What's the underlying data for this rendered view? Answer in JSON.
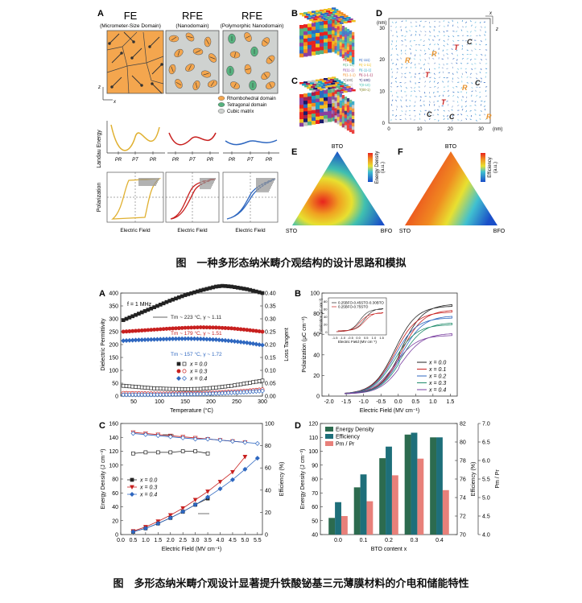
{
  "fig1": {
    "caption": "图　一种多形态纳米畴介观结构的设计思路和模拟",
    "A": {
      "letter": "A",
      "titles": [
        "FE",
        "RFE",
        "RFE"
      ],
      "subtitles": [
        "(Micrometer-Size Domain)",
        "(Nanodomain)",
        "(Polymorphic Nanodomain)"
      ],
      "legend": [
        "Rhombohedral domain",
        "Tetragonal domain",
        "Cubic matrix"
      ],
      "energy_ylabel": "Landau Energy",
      "energy_ticks": [
        [
          "PR",
          "PT",
          "PR"
        ],
        [
          "PR",
          "PT",
          "PR"
        ],
        [
          "PR",
          "PT",
          "PR"
        ]
      ],
      "pol_ylabel": "Polarization",
      "pol_xlabels": [
        "Electric Field",
        "Electric Field",
        "Electric Field"
      ],
      "axis_z": "z",
      "axis_x": "x"
    },
    "B": {
      "letter": "B"
    },
    "C": {
      "letter": "C"
    },
    "B_legend": [
      "R(111)",
      "R(-111)",
      "R(1-11)",
      "R(-1-11)",
      "R(11-1)",
      "R(-11-1)",
      "R(1-1-1)",
      "R(-1-1-1)",
      "T(100)",
      "T(-100)",
      "T(010)",
      "T(0-10)",
      "T(001)",
      "T(00-1)"
    ],
    "D": {
      "letter": "D",
      "ylabel": "(nm)",
      "xunit": "(nm)",
      "xticks": [
        "0",
        "10",
        "20",
        "30"
      ],
      "yticks": [
        "0",
        "10",
        "20",
        "30"
      ],
      "axis_x": "x",
      "axis_z": "z",
      "labels": [
        {
          "t": "C",
          "c": "#222"
        },
        {
          "t": "R",
          "c": "#e8912a"
        },
        {
          "t": "R",
          "c": "#e8912a"
        },
        {
          "t": "T",
          "c": "#c8201f"
        },
        {
          "t": "T",
          "c": "#c8201f"
        },
        {
          "t": "R",
          "c": "#e8912a"
        },
        {
          "t": "C",
          "c": "#222"
        },
        {
          "t": "T",
          "c": "#c8201f"
        },
        {
          "t": "C",
          "c": "#222"
        },
        {
          "t": "C",
          "c": "#222"
        },
        {
          "t": "R",
          "c": "#e8912a"
        }
      ]
    },
    "E": {
      "letter": "E",
      "top": "BTO",
      "left": "STO",
      "right": "BFO",
      "cbar": "Energy Density",
      "cbar_unit": "(a.u.)"
    },
    "F": {
      "letter": "F",
      "top": "BTO",
      "left": "STO",
      "right": "BFO",
      "cbar": "Efficiency",
      "cbar_unit": "(a.u.)"
    }
  },
  "fig2": {
    "caption": "图　多形态纳米畴介观设计显著提升铁酸铋基三元薄膜材料的介电和储能特性",
    "A": {
      "letter": "A",
      "freq": "f = 1 MHz",
      "ylabel_left": "Dielectric Permittivity",
      "ylabel_right": "Loss Tangent",
      "xlabel": "Temperature (°C)",
      "xticks": [
        "50",
        "100",
        "150",
        "200",
        "250",
        "300"
      ],
      "yticks_left": [
        "0",
        "50",
        "100",
        "150",
        "200",
        "250",
        "300",
        "350",
        "400"
      ],
      "yticks_right": [
        "0.00",
        "0.05",
        "0.10",
        "0.15",
        "0.20",
        "0.25",
        "0.30",
        "0.35",
        "0.40"
      ],
      "annotations": [
        "Tm ~ 223 °C, γ ~ 1.11",
        "Tm ~ 179 °C, γ ~ 1.51",
        "Tm ~ 157 °C, γ ~ 1.72"
      ],
      "legend": [
        "x = 0.0",
        "x = 0.3",
        "x = 0.4"
      ]
    },
    "B": {
      "letter": "B",
      "ylabel": "Polarization (μC cm⁻²)",
      "xlabel": "Electric Field (MV cm⁻¹)",
      "xticks": [
        "-2.0",
        "-1.5",
        "-1.0",
        "-0.5",
        "0.0",
        "0.5",
        "1.0",
        "1.5"
      ],
      "yticks": [
        "0",
        "20",
        "40",
        "60",
        "80",
        "100"
      ],
      "legend": [
        "x = 0.0",
        "x = 0.1",
        "x = 0.2",
        "x = 0.3",
        "x = 0.4"
      ],
      "inset_legend": [
        "0.25BFO-0.45STO-0.30BTO",
        "0.25BFO-0.75STO"
      ],
      "inset_ylabel": "Polarization (μC cm⁻²)",
      "inset_xlabel": "Electric Field (MV cm⁻¹)",
      "inset_xticks": [
        "-1.5",
        "-1.0",
        "-0.5",
        "0.0",
        "0.5",
        "1.0",
        "1.5"
      ],
      "inset_yticks": [
        "0",
        "20",
        "40",
        "60",
        "80"
      ]
    },
    "C": {
      "letter": "C",
      "ylabel_left": "Energy Density (J cm⁻³)",
      "ylabel_right": "Efficiency (%)",
      "xlabel": "Electric Field (MV cm⁻¹)",
      "xticks": [
        "0.0",
        "0.5",
        "1.0",
        "1.5",
        "2.0",
        "2.5",
        "3.0",
        "3.5",
        "4.0",
        "4.5",
        "5.0",
        "5.5"
      ],
      "yticks_left": [
        "0",
        "20",
        "40",
        "60",
        "80",
        "100",
        "120",
        "140",
        "160"
      ],
      "yticks_right": [
        "0",
        "20",
        "40",
        "60",
        "80",
        "100"
      ],
      "legend": [
        "x = 0.0",
        "x = 0.3",
        "x = 0.4"
      ]
    },
    "D": {
      "letter": "D",
      "ylabel_left": "Energy Density (J cm⁻³)",
      "ylabel_mid": "Efficiency (%)",
      "ylabel_right": "Pm / Pr",
      "xlabel": "BTO content x",
      "xticks": [
        "0.0",
        "0.1",
        "0.2",
        "0.3",
        "0.4"
      ],
      "yticks_left": [
        "40",
        "50",
        "60",
        "70",
        "80",
        "90",
        "100",
        "110",
        "120"
      ],
      "yticks_mid": [
        "70",
        "72",
        "74",
        "76",
        "78",
        "80",
        "82"
      ],
      "yticks_right": [
        "4.0",
        "4.5",
        "5.0",
        "5.5",
        "6.0",
        "6.5",
        "7.0"
      ],
      "legend": [
        "Energy Density",
        "Efficiency",
        "Pm / Pr"
      ]
    }
  },
  "chart_data": [
    {
      "type": "scatter",
      "xlabel": "Temperature (°C)",
      "ylabel": "Dielectric Permittivity",
      "xlim": [
        25,
        300
      ],
      "ylim": [
        0,
        400
      ],
      "series": [
        {
          "name": "x = 0.0",
          "color": "#222222",
          "permittivity": {
            "x": [
              30,
              60,
              90,
              120,
              150,
              180,
              210,
              223,
              240,
              270,
              300
            ],
            "y": [
              295,
              320,
              345,
              370,
              392,
              410,
              425,
              428,
              425,
              415,
              400
            ]
          },
          "loss": {
            "x": [
              30,
              60,
              90,
              120,
              150,
              180,
              210,
              240,
              270,
              300
            ],
            "y": [
              0.04,
              0.035,
              0.03,
              0.028,
              0.027,
              0.028,
              0.033,
              0.04,
              0.05,
              0.06
            ]
          }
        },
        {
          "name": "x = 0.3",
          "color": "#c8201f",
          "permittivity": {
            "x": [
              30,
              60,
              90,
              120,
              150,
              179,
              210,
              240,
              270,
              300
            ],
            "y": [
              250,
              254,
              258,
              262,
              265,
              267,
              266,
              263,
              257,
              250
            ]
          },
          "loss": {
            "x": [
              30,
              60,
              90,
              120,
              150,
              180,
              210,
              240,
              270,
              300
            ],
            "y": [
              0.012,
              0.011,
              0.01,
              0.01,
              0.011,
              0.012,
              0.014,
              0.017,
              0.021,
              0.026
            ]
          }
        },
        {
          "name": "x = 0.4",
          "color": "#2e67c0",
          "permittivity": {
            "x": [
              30,
              60,
              90,
              120,
              157,
              180,
              210,
              240,
              270,
              300
            ],
            "y": [
              215,
              218,
              220,
              222,
              223,
              222,
              219,
              214,
              207,
              198
            ]
          },
          "loss": {
            "x": [
              30,
              60,
              90,
              120,
              150,
              180,
              210,
              240,
              270,
              300
            ],
            "y": [
              0.005,
              0.005,
              0.005,
              0.006,
              0.007,
              0.008,
              0.01,
              0.013,
              0.016,
              0.02
            ]
          }
        }
      ]
    },
    {
      "type": "line",
      "xlabel": "Electric Field (MV cm⁻¹)",
      "ylabel": "Polarization (μC cm⁻²)",
      "xlim": [
        -2.2,
        1.7
      ],
      "ylim": [
        0,
        100
      ],
      "series": [
        {
          "name": "x = 0.0",
          "color": "#222222",
          "Pmax": 92
        },
        {
          "name": "x = 0.1",
          "color": "#c8201f",
          "Pmax": 86
        },
        {
          "name": "x = 0.2",
          "color": "#2e67c0",
          "Pmax": 80
        },
        {
          "name": "x = 0.3",
          "color": "#1e8a6a",
          "Pmax": 73
        },
        {
          "name": "x = 0.4",
          "color": "#7a3fa0",
          "Pmax": 62
        }
      ]
    },
    {
      "type": "line",
      "xlabel": "Electric Field (MV cm⁻¹)",
      "ylabel": "Energy Density (J cm⁻³)",
      "xlim": [
        0,
        5.7
      ],
      "ylim": [
        0,
        160
      ],
      "ylim_right": [
        0,
        100
      ],
      "series": [
        {
          "name": "x = 0.0",
          "color": "#222222",
          "x": [
            0.5,
            1.0,
            1.5,
            2.0,
            2.5,
            3.0,
            3.5
          ],
          "energy": [
            4,
            9,
            16,
            24,
            33,
            43,
            52
          ],
          "efficiency": [
            73,
            74,
            74,
            74,
            75,
            75,
            73
          ]
        },
        {
          "name": "x = 0.3",
          "color": "#c8201f",
          "x": [
            0.5,
            1.0,
            1.5,
            2.0,
            2.5,
            3.0,
            3.5,
            4.0,
            4.5,
            5.0
          ],
          "energy": [
            5,
            11,
            19,
            28,
            38,
            50,
            62,
            76,
            90,
            112
          ],
          "efficiency": [
            92,
            91,
            90,
            89,
            88,
            87,
            86,
            85,
            84,
            83
          ]
        },
        {
          "name": "x = 0.4",
          "color": "#2e67c0",
          "x": [
            0.5,
            1.0,
            1.5,
            2.0,
            2.5,
            3.0,
            3.5,
            4.0,
            4.5,
            5.0,
            5.5
          ],
          "energy": [
            4,
            9,
            16,
            24,
            33,
            43,
            54,
            66,
            79,
            94,
            110
          ],
          "efficiency": [
            91,
            90,
            89,
            88,
            87,
            86,
            86,
            85,
            84,
            83,
            82
          ]
        }
      ]
    },
    {
      "type": "bar",
      "xlabel": "BTO content x",
      "categories": [
        "0.0",
        "0.1",
        "0.2",
        "0.3",
        "0.4"
      ],
      "series": [
        {
          "name": "Energy Density",
          "color": "#2c6b4f",
          "axis": "left",
          "ylim": [
            40,
            120
          ],
          "values": [
            52,
            74,
            95,
            112,
            110
          ]
        },
        {
          "name": "Efficiency",
          "color": "#1e6f7a",
          "axis": "mid",
          "ylim": [
            70,
            82
          ],
          "values": [
            73.5,
            76.5,
            79.5,
            81.0,
            80.5
          ]
        },
        {
          "name": "Pm / Pr",
          "color": "#e8807a",
          "axis": "right",
          "ylim": [
            4.0,
            7.0
          ],
          "values": [
            4.5,
            4.9,
            5.6,
            6.05,
            5.2
          ]
        }
      ]
    }
  ]
}
